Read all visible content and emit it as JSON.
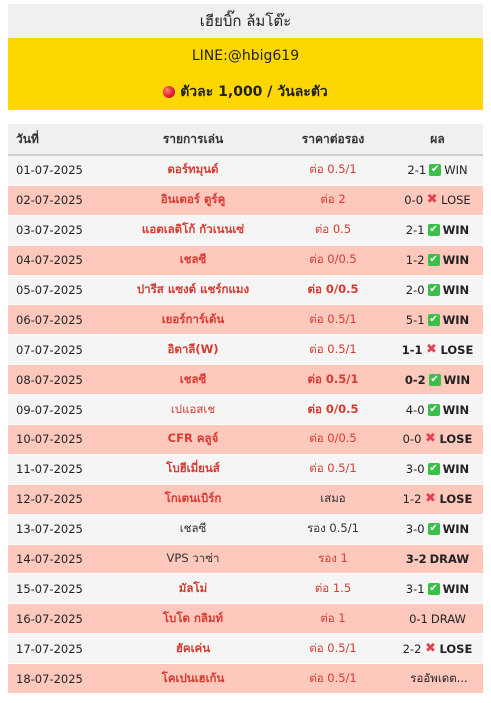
{
  "header": {
    "title": "เฮียบิ๊ก ล้มโต๊ะ",
    "line": "LINE:@hbig619",
    "promo": "ตัวละ 1,000 / วันละตัว"
  },
  "table": {
    "columns": [
      "วันที่",
      "รายการเล่น",
      "ราคาต่อรอง",
      "ผล"
    ],
    "rows": [
      {
        "date": "01-07-2025",
        "match": "ดอร์ทมุนด์",
        "odds": "ต่อ 0.5/1",
        "score": "2-1",
        "result": "WIN",
        "icon": "check-icon"
      },
      {
        "date": "02-07-2025",
        "match": "อินเตอร์ ตูร์คู",
        "odds": "ต่อ 2",
        "score": "0-0",
        "result": "LOSE",
        "icon": "cross-icon"
      },
      {
        "date": "03-07-2025",
        "match": "แอตเลติโก้ กัวเนนเซ่",
        "odds": "ต่อ 0.5",
        "score": "2-1",
        "result": "WIN",
        "icon": "check-icon"
      },
      {
        "date": "04-07-2025",
        "match": "เชลซี",
        "odds": "ต่อ 0/0.5",
        "score": "1-2",
        "result": "WIN",
        "icon": "check-icon"
      },
      {
        "date": "05-07-2025",
        "match": "ปารีส แซงต์ แชร์กแมง",
        "odds": "ต่อ 0/0.5",
        "score": "2-0",
        "result": "WIN",
        "icon": "check-icon"
      },
      {
        "date": "06-07-2025",
        "match": "เยอร์การ์เด้น",
        "odds": "ต่อ 0.5/1",
        "score": "5-1",
        "result": "WIN",
        "icon": "check-icon"
      },
      {
        "date": "07-07-2025",
        "match": "อิตาลี(W)",
        "odds": "ต่อ 0.5/1",
        "score": "1-1",
        "result": "LOSE",
        "icon": "cross-icon"
      },
      {
        "date": "08-07-2025",
        "match": "เชลซี",
        "odds": "ต่อ 0.5/1",
        "score": "0-2",
        "result": "WIN",
        "icon": "check-icon"
      },
      {
        "date": "09-07-2025",
        "match": "เปแอสเช",
        "odds": "ต่อ 0/0.5",
        "score": "4-0",
        "result": "WIN",
        "icon": "check-icon"
      },
      {
        "date": "10-07-2025",
        "match": "CFR คลูจ์",
        "odds": "ต่อ 0/0.5",
        "score": "0-0",
        "result": "LOSE",
        "icon": "cross-icon"
      },
      {
        "date": "11-07-2025",
        "match": "โบฮีเมี่ยนส์",
        "odds": "ต่อ 0.5/1",
        "score": "3-0",
        "result": "WIN",
        "icon": "check-icon"
      },
      {
        "date": "12-07-2025",
        "match": "โกเตนเบิร์ก",
        "odds": "เสมอ",
        "score": "1-2",
        "result": "LOSE",
        "icon": "cross-icon"
      },
      {
        "date": "13-07-2025",
        "match": "เชลซี",
        "odds": "รอง 0.5/1",
        "score": "3-0",
        "result": "WIN",
        "icon": "check-icon"
      },
      {
        "date": "14-07-2025",
        "match": "VPS วาซ่า",
        "odds": "รอง 1",
        "score": "3-2",
        "result": "DRAW",
        "icon": ""
      },
      {
        "date": "15-07-2025",
        "match": "มัลโม่",
        "odds": "ต่อ  1.5",
        "score": "3-1",
        "result": "WIN",
        "icon": "check-icon"
      },
      {
        "date": "16-07-2025",
        "match": "โบโด กลิมท์",
        "odds": "ต่อ 1",
        "score": "0-1",
        "result": "DRAW",
        "icon": ""
      },
      {
        "date": "17-07-2025",
        "match": "ฮัคเค่น",
        "odds": "ต่อ 0.5/1",
        "score": "2-2",
        "result": "LOSE",
        "icon": "cross-icon"
      },
      {
        "date": "18-07-2025",
        "match": "โคเปนเฮเก้น",
        "odds": "ต่อ 0.5/1",
        "score": "",
        "result": "รออัพเดต...",
        "icon": ""
      }
    ]
  }
}
